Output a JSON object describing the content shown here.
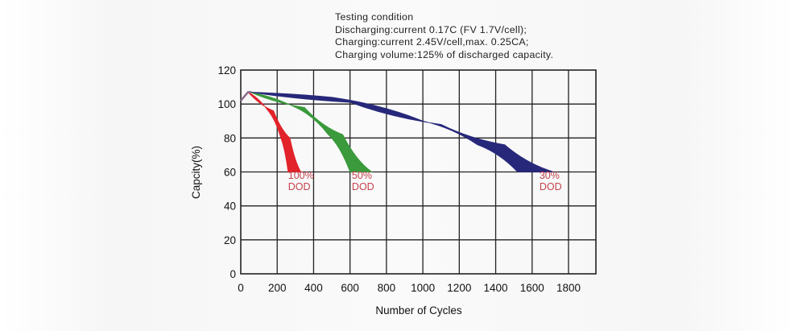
{
  "chart_data": {
    "type": "area",
    "title_lines": [
      "Testing condition",
      "Discharging:current 0.17C (FV 1.7V/cell);",
      "Charging:current 2.45V/cell,max. 0.25CA;",
      "Charging volume:125% of discharged capacity."
    ],
    "xlabel": "Number of Cycles",
    "ylabel": "Capcity(%)",
    "xlim": [
      0,
      1950
    ],
    "ylim": [
      0,
      120
    ],
    "xticks": [
      0,
      200,
      400,
      600,
      800,
      1000,
      1200,
      1400,
      1600,
      1800
    ],
    "yticks": [
      0,
      20,
      40,
      60,
      80,
      100,
      120
    ],
    "grid": true,
    "initial_rise": [
      [
        0,
        102
      ],
      [
        40,
        107
      ]
    ],
    "series": [
      {
        "name": "100% DOD",
        "label_lines": [
          "100%",
          "DOD"
        ],
        "color": "#e2232a",
        "label_at": [
          260,
          56
        ],
        "inner": [
          [
            40,
            107
          ],
          [
            150,
            96
          ],
          [
            220,
            80
          ],
          [
            260,
            60
          ]
        ],
        "outer": [
          [
            40,
            107
          ],
          [
            180,
            96
          ],
          [
            270,
            80
          ],
          [
            330,
            60
          ]
        ]
      },
      {
        "name": "50% DOD",
        "label_lines": [
          "50%",
          "DOD"
        ],
        "color": "#3a9a3c",
        "label_at": [
          610,
          56
        ],
        "inner": [
          [
            50,
            107
          ],
          [
            300,
            98
          ],
          [
            480,
            82
          ],
          [
            600,
            60
          ]
        ],
        "outer": [
          [
            50,
            107
          ],
          [
            350,
            98
          ],
          [
            560,
            82
          ],
          [
            720,
            60
          ]
        ]
      },
      {
        "name": "30% DOD",
        "label_lines": [
          "30%",
          "DOD"
        ],
        "color": "#27287a",
        "label_at": [
          1640,
          56
        ],
        "inner": [
          [
            50,
            107
          ],
          [
            500,
            104
          ],
          [
            1000,
            90
          ],
          [
            1300,
            76
          ],
          [
            1520,
            60
          ]
        ],
        "outer": [
          [
            50,
            107
          ],
          [
            600,
            101
          ],
          [
            1100,
            88
          ],
          [
            1450,
            76
          ],
          [
            1720,
            60
          ]
        ]
      }
    ]
  }
}
